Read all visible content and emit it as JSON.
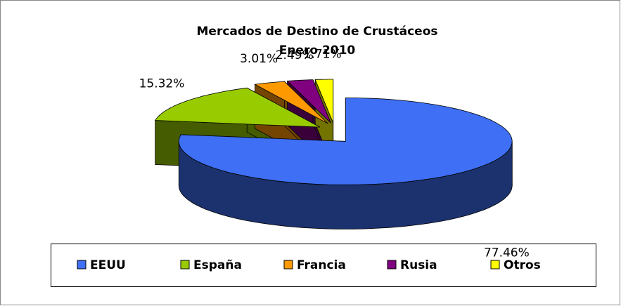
{
  "chart_data": {
    "type": "pie3d",
    "title": "Mercados de Destino de Crustáceos",
    "subtitle": "Enero 2010",
    "categories": [
      "EEUU",
      "España",
      "Francia",
      "Rusia",
      "Otros"
    ],
    "values": [
      77.46,
      15.32,
      3.01,
      2.49,
      1.71
    ],
    "value_labels": [
      "77.46%",
      "15.32%",
      "3.01%",
      "2.49%",
      "1.71%"
    ],
    "colors": [
      "#3e6ff4",
      "#99cc00",
      "#ff9900",
      "#800080",
      "#ffff00"
    ],
    "legend": "bottom"
  }
}
